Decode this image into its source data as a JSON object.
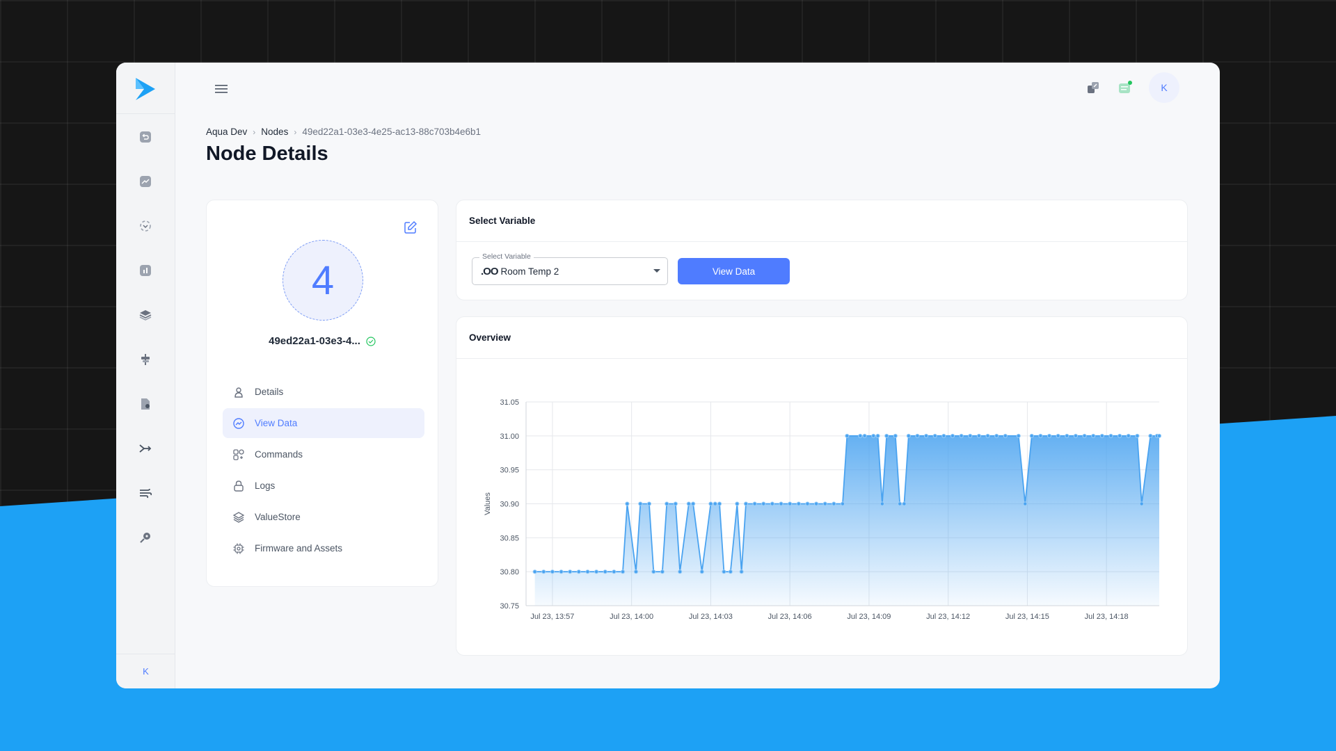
{
  "sidebar": {
    "icons": [
      "undo-icon",
      "trend-icon",
      "scan-icon",
      "bar-chart-icon",
      "layers-icon",
      "signpost-icon",
      "document-user-icon",
      "merge-arrow-icon",
      "wind-icon",
      "key-icon"
    ],
    "user_initial": "K"
  },
  "header": {
    "avatar_initial": "K"
  },
  "breadcrumb": {
    "items": [
      "Aqua Dev",
      "Nodes",
      "49ed22a1-03e3-4e25-ac13-88c703b4e6b1"
    ]
  },
  "page_title": "Node Details",
  "node": {
    "avatar_number": "4",
    "name": "49ed22a1-03e3-4...",
    "menu": [
      {
        "label": "Details",
        "icon": "user-icon",
        "active": false
      },
      {
        "label": "View Data",
        "icon": "chart-circle-icon",
        "active": true
      },
      {
        "label": "Commands",
        "icon": "command-icon",
        "active": false
      },
      {
        "label": "Logs",
        "icon": "lock-icon",
        "active": false
      },
      {
        "label": "ValueStore",
        "icon": "stack-icon",
        "active": false
      },
      {
        "label": "Firmware and Assets",
        "icon": "chip-icon",
        "active": false
      }
    ]
  },
  "select_variable": {
    "title": "Select Variable",
    "field_label": "Select Variable",
    "value_glyph": ".OO",
    "value": "Room Temp 2",
    "button": "View Data"
  },
  "overview": {
    "title": "Overview"
  },
  "colors": {
    "accent": "#4f7cff",
    "series": "#4aa3f0",
    "background_blue": "#1da1f5"
  },
  "chart_data": {
    "type": "area",
    "ylabel": "Values",
    "ylim": [
      30.75,
      31.05
    ],
    "y_ticks": [
      "31.05",
      "31.00",
      "30.95",
      "30.90",
      "30.85",
      "30.80",
      "30.75"
    ],
    "x_ticks": [
      "Jul 23, 13:57",
      "Jul 23, 14:00",
      "Jul 23, 14:03",
      "Jul 23, 14:06",
      "Jul 23, 14:09",
      "Jul 23, 14:12",
      "Jul 23, 14:15",
      "Jul 23, 14:18"
    ],
    "x_start": "Jul 23, 13:56",
    "x_end": "Jul 23, 14:20",
    "grid": true,
    "series": [
      {
        "values": [
          [
            "13:56:20",
            30.8
          ],
          [
            "13:56:40",
            30.8
          ],
          [
            "13:57:00",
            30.8
          ],
          [
            "13:57:20",
            30.8
          ],
          [
            "13:57:40",
            30.8
          ],
          [
            "13:58:00",
            30.8
          ],
          [
            "13:58:20",
            30.8
          ],
          [
            "13:58:40",
            30.8
          ],
          [
            "13:59:00",
            30.8
          ],
          [
            "13:59:20",
            30.8
          ],
          [
            "13:59:40",
            30.8
          ],
          [
            "13:59:50",
            30.9
          ],
          [
            "14:00:10",
            30.8
          ],
          [
            "14:00:20",
            30.9
          ],
          [
            "14:00:40",
            30.9
          ],
          [
            "14:00:50",
            30.8
          ],
          [
            "14:01:10",
            30.8
          ],
          [
            "14:01:20",
            30.9
          ],
          [
            "14:01:40",
            30.9
          ],
          [
            "14:01:50",
            30.8
          ],
          [
            "14:02:10",
            30.9
          ],
          [
            "14:02:20",
            30.9
          ],
          [
            "14:02:40",
            30.8
          ],
          [
            "14:03:00",
            30.9
          ],
          [
            "14:03:10",
            30.9
          ],
          [
            "14:03:20",
            30.9
          ],
          [
            "14:03:30",
            30.8
          ],
          [
            "14:03:45",
            30.8
          ],
          [
            "14:04:00",
            30.9
          ],
          [
            "14:04:10",
            30.8
          ],
          [
            "14:04:20",
            30.9
          ],
          [
            "14:04:40",
            30.9
          ],
          [
            "14:05:00",
            30.9
          ],
          [
            "14:05:20",
            30.9
          ],
          [
            "14:05:40",
            30.9
          ],
          [
            "14:06:00",
            30.9
          ],
          [
            "14:06:20",
            30.9
          ],
          [
            "14:06:40",
            30.9
          ],
          [
            "14:07:00",
            30.9
          ],
          [
            "14:07:20",
            30.9
          ],
          [
            "14:07:40",
            30.9
          ],
          [
            "14:08:00",
            30.9
          ],
          [
            "14:08:10",
            31.0
          ],
          [
            "14:08:40",
            31.0
          ],
          [
            "14:08:50",
            31.0
          ],
          [
            "14:09:10",
            31.0
          ],
          [
            "14:09:20",
            31.0
          ],
          [
            "14:09:30",
            30.9
          ],
          [
            "14:09:40",
            31.0
          ],
          [
            "14:10:00",
            31.0
          ],
          [
            "14:10:10",
            30.9
          ],
          [
            "14:10:20",
            30.9
          ],
          [
            "14:10:30",
            31.0
          ],
          [
            "14:10:50",
            31.0
          ],
          [
            "14:11:10",
            31.0
          ],
          [
            "14:11:30",
            31.0
          ],
          [
            "14:11:50",
            31.0
          ],
          [
            "14:12:10",
            31.0
          ],
          [
            "14:12:30",
            31.0
          ],
          [
            "14:12:50",
            31.0
          ],
          [
            "14:13:10",
            31.0
          ],
          [
            "14:13:30",
            31.0
          ],
          [
            "14:13:50",
            31.0
          ],
          [
            "14:14:10",
            31.0
          ],
          [
            "14:14:40",
            31.0
          ],
          [
            "14:14:55",
            30.9
          ],
          [
            "14:15:10",
            31.0
          ],
          [
            "14:15:30",
            31.0
          ],
          [
            "14:15:50",
            31.0
          ],
          [
            "14:16:10",
            31.0
          ],
          [
            "14:16:30",
            31.0
          ],
          [
            "14:16:50",
            31.0
          ],
          [
            "14:17:10",
            31.0
          ],
          [
            "14:17:30",
            31.0
          ],
          [
            "14:17:50",
            31.0
          ],
          [
            "14:18:10",
            31.0
          ],
          [
            "14:18:30",
            31.0
          ],
          [
            "14:18:50",
            31.0
          ],
          [
            "14:19:10",
            31.0
          ],
          [
            "14:19:20",
            30.9
          ],
          [
            "14:19:40",
            31.0
          ],
          [
            "14:19:55",
            31.0
          ],
          [
            "14:20:00",
            31.0
          ]
        ]
      }
    ]
  }
}
